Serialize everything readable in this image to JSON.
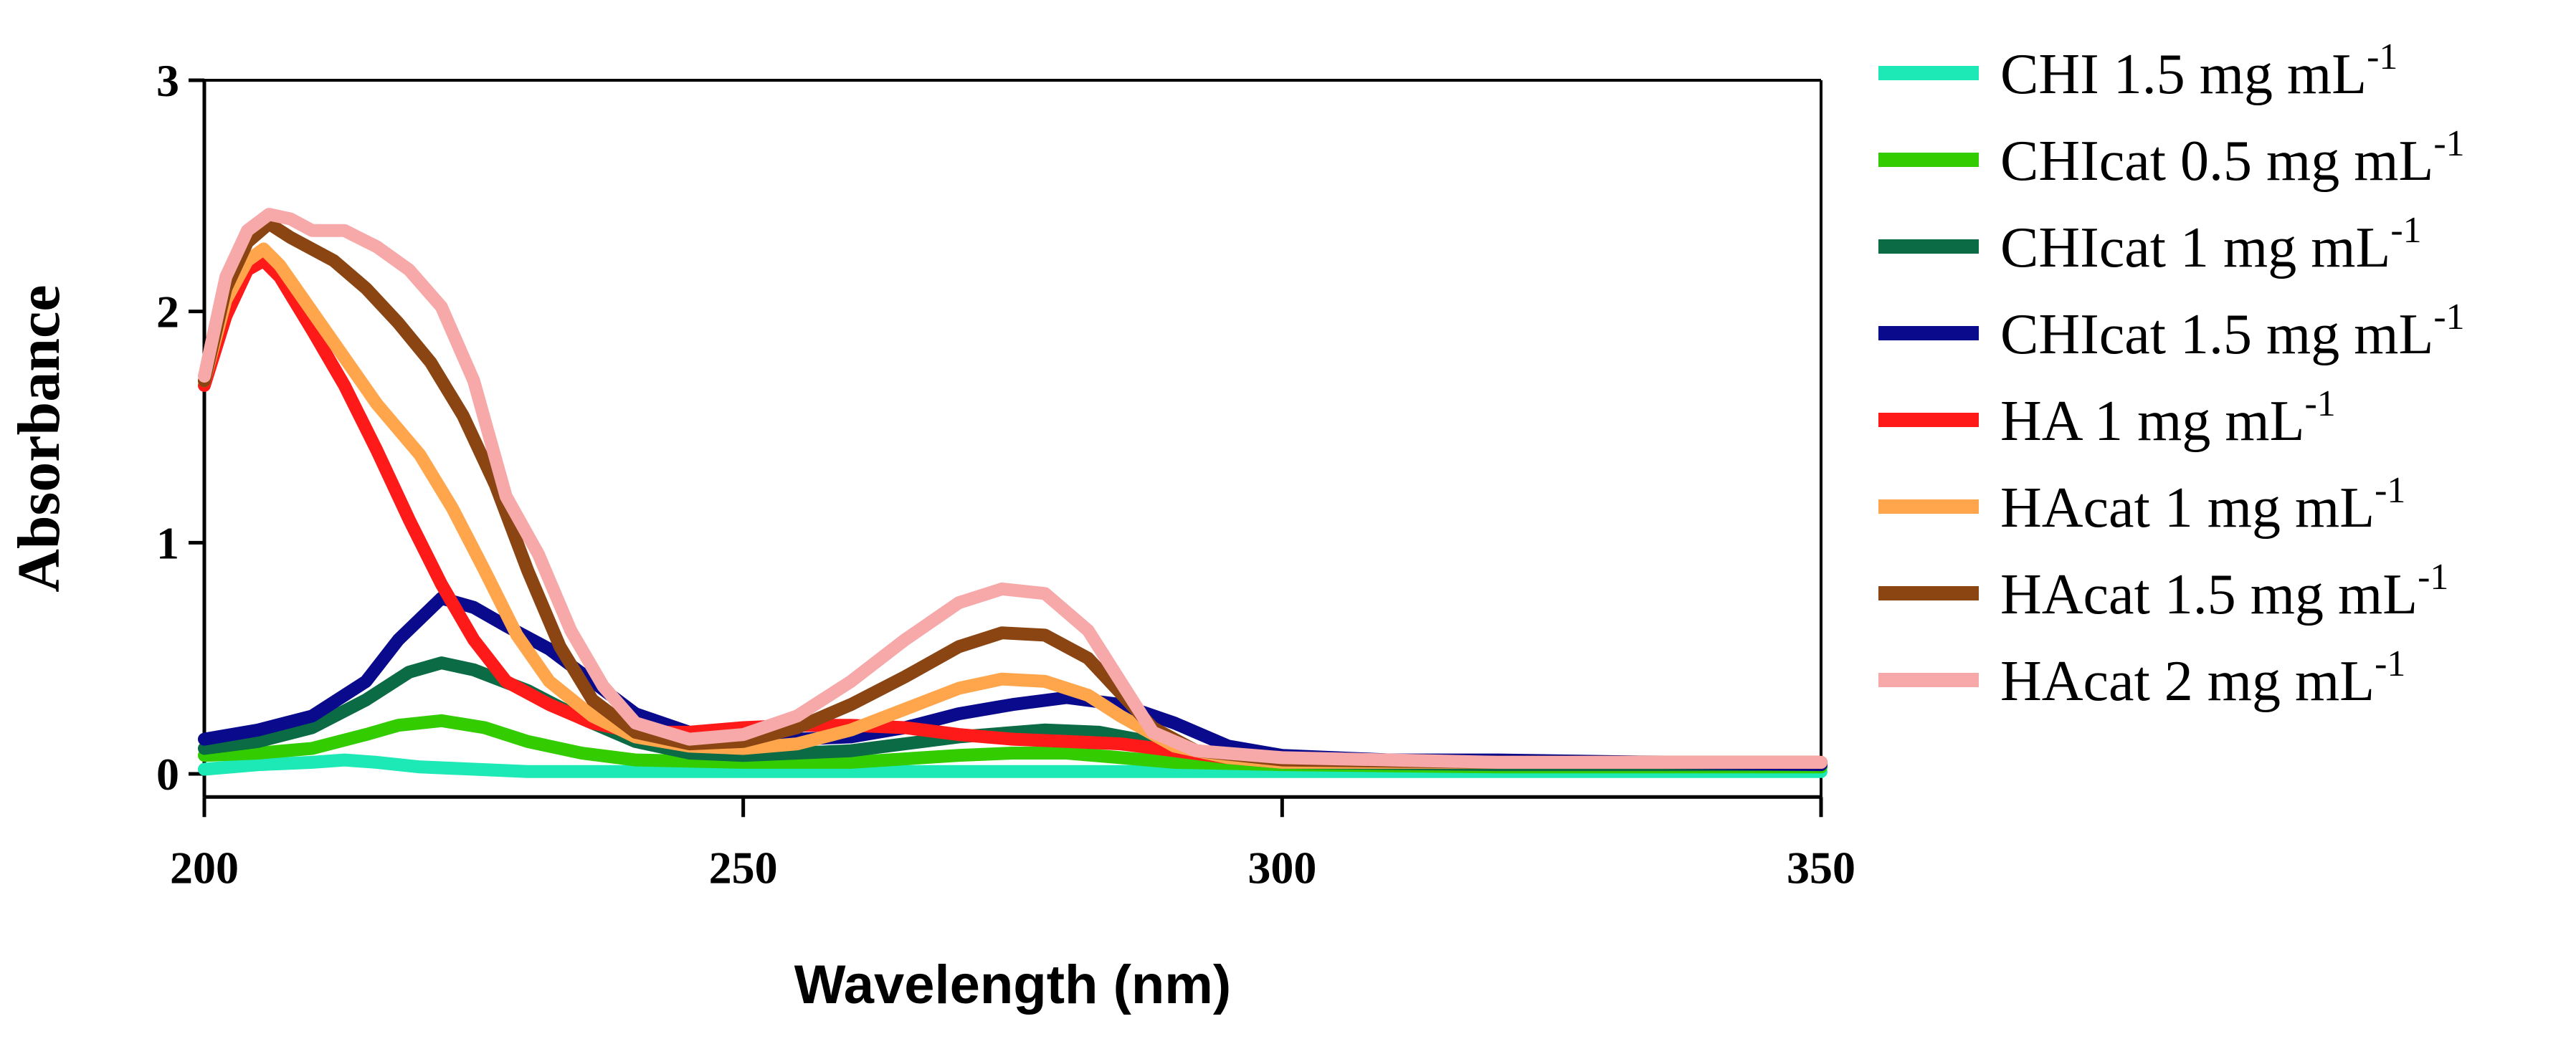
{
  "chart_data": {
    "type": "line",
    "xlabel": "Wavelength (nm)",
    "ylabel": "Absorbance",
    "xlim": [
      200,
      350
    ],
    "ylim": [
      -0.1,
      3
    ],
    "xticks": [
      200,
      250,
      300,
      350
    ],
    "yticks": [
      0,
      1,
      2,
      3
    ],
    "xtick_labels": [
      "200",
      "250",
      "300",
      "350"
    ],
    "ytick_labels": [
      "0",
      "1",
      "2",
      "3"
    ],
    "grid": false,
    "legend_position": "right",
    "series": [
      {
        "name": "CHI 1.5 mg mL",
        "sup": "-1",
        "color": "#1de9b6",
        "points": [
          [
            200,
            0.02
          ],
          [
            205,
            0.04
          ],
          [
            210,
            0.05
          ],
          [
            213,
            0.06
          ],
          [
            216,
            0.05
          ],
          [
            220,
            0.03
          ],
          [
            225,
            0.02
          ],
          [
            230,
            0.01
          ],
          [
            240,
            0.01
          ],
          [
            250,
            0.01
          ],
          [
            260,
            0.01
          ],
          [
            270,
            0.01
          ],
          [
            280,
            0.01
          ],
          [
            290,
            0.01
          ],
          [
            300,
            0.01
          ],
          [
            320,
            0.01
          ],
          [
            350,
            0.01
          ]
        ]
      },
      {
        "name": "CHIcat 0.5 mg mL",
        "sup": "-1",
        "color": "#33cc00",
        "points": [
          [
            200,
            0.08
          ],
          [
            205,
            0.09
          ],
          [
            210,
            0.11
          ],
          [
            215,
            0.17
          ],
          [
            218,
            0.21
          ],
          [
            222,
            0.23
          ],
          [
            226,
            0.2
          ],
          [
            230,
            0.14
          ],
          [
            235,
            0.09
          ],
          [
            240,
            0.06
          ],
          [
            250,
            0.05
          ],
          [
            260,
            0.05
          ],
          [
            270,
            0.08
          ],
          [
            275,
            0.09
          ],
          [
            280,
            0.09
          ],
          [
            285,
            0.07
          ],
          [
            290,
            0.05
          ],
          [
            300,
            0.04
          ],
          [
            320,
            0.03
          ],
          [
            350,
            0.03
          ]
        ]
      },
      {
        "name": "CHIcat 1 mg mL",
        "sup": "-1",
        "color": "#0b6b45",
        "points": [
          [
            200,
            0.11
          ],
          [
            205,
            0.14
          ],
          [
            210,
            0.2
          ],
          [
            215,
            0.32
          ],
          [
            219,
            0.44
          ],
          [
            222,
            0.48
          ],
          [
            225,
            0.45
          ],
          [
            230,
            0.36
          ],
          [
            235,
            0.24
          ],
          [
            240,
            0.14
          ],
          [
            245,
            0.09
          ],
          [
            250,
            0.08
          ],
          [
            260,
            0.1
          ],
          [
            270,
            0.16
          ],
          [
            278,
            0.19
          ],
          [
            283,
            0.18
          ],
          [
            290,
            0.12
          ],
          [
            295,
            0.07
          ],
          [
            300,
            0.05
          ],
          [
            320,
            0.04
          ],
          [
            350,
            0.04
          ]
        ]
      },
      {
        "name": "CHIcat  1.5 mg mL",
        "sup": "-1",
        "color": "#0a0a8c",
        "points": [
          [
            200,
            0.15
          ],
          [
            205,
            0.19
          ],
          [
            210,
            0.25
          ],
          [
            215,
            0.4
          ],
          [
            218,
            0.58
          ],
          [
            222,
            0.76
          ],
          [
            225,
            0.72
          ],
          [
            228,
            0.64
          ],
          [
            232,
            0.54
          ],
          [
            236,
            0.4
          ],
          [
            240,
            0.26
          ],
          [
            245,
            0.18
          ],
          [
            250,
            0.15
          ],
          [
            255,
            0.15
          ],
          [
            260,
            0.16
          ],
          [
            265,
            0.2
          ],
          [
            270,
            0.26
          ],
          [
            275,
            0.3
          ],
          [
            280,
            0.33
          ],
          [
            285,
            0.3
          ],
          [
            290,
            0.22
          ],
          [
            295,
            0.12
          ],
          [
            300,
            0.08
          ],
          [
            310,
            0.06
          ],
          [
            320,
            0.06
          ],
          [
            350,
            0.04
          ]
        ]
      },
      {
        "name": "HA 1 mg mL",
        "sup": "-1",
        "color": "#ff1a1a",
        "points": [
          [
            200,
            1.68
          ],
          [
            202,
            1.98
          ],
          [
            204,
            2.18
          ],
          [
            205.5,
            2.22
          ],
          [
            207,
            2.15
          ],
          [
            210,
            1.92
          ],
          [
            213,
            1.68
          ],
          [
            216,
            1.4
          ],
          [
            219,
            1.1
          ],
          [
            222,
            0.82
          ],
          [
            225,
            0.58
          ],
          [
            228,
            0.4
          ],
          [
            232,
            0.3
          ],
          [
            236,
            0.22
          ],
          [
            240,
            0.18
          ],
          [
            245,
            0.18
          ],
          [
            250,
            0.2
          ],
          [
            255,
            0.21
          ],
          [
            260,
            0.21
          ],
          [
            265,
            0.2
          ],
          [
            270,
            0.17
          ],
          [
            275,
            0.15
          ],
          [
            280,
            0.14
          ],
          [
            285,
            0.13
          ],
          [
            290,
            0.1
          ],
          [
            295,
            0.07
          ],
          [
            300,
            0.06
          ],
          [
            320,
            0.05
          ],
          [
            350,
            0.05
          ]
        ]
      },
      {
        "name": "HAcat 1 mg mL",
        "sup": "-1",
        "color": "#ffa64d",
        "points": [
          [
            200,
            1.7
          ],
          [
            202,
            2.05
          ],
          [
            204,
            2.22
          ],
          [
            205.5,
            2.27
          ],
          [
            207,
            2.2
          ],
          [
            210,
            2.0
          ],
          [
            213,
            1.8
          ],
          [
            216,
            1.6
          ],
          [
            220,
            1.38
          ],
          [
            223,
            1.15
          ],
          [
            226,
            0.88
          ],
          [
            229,
            0.6
          ],
          [
            232,
            0.4
          ],
          [
            236,
            0.25
          ],
          [
            240,
            0.16
          ],
          [
            245,
            0.12
          ],
          [
            250,
            0.11
          ],
          [
            255,
            0.13
          ],
          [
            260,
            0.19
          ],
          [
            265,
            0.28
          ],
          [
            270,
            0.37
          ],
          [
            274,
            0.41
          ],
          [
            278,
            0.4
          ],
          [
            282,
            0.34
          ],
          [
            285,
            0.25
          ],
          [
            290,
            0.12
          ],
          [
            295,
            0.07
          ],
          [
            300,
            0.05
          ],
          [
            320,
            0.05
          ],
          [
            350,
            0.05
          ]
        ]
      },
      {
        "name": "HAcat 1.5 mg mL",
        "sup": "-1",
        "color": "#8b4513",
        "points": [
          [
            200,
            1.7
          ],
          [
            202,
            2.1
          ],
          [
            204,
            2.3
          ],
          [
            206,
            2.38
          ],
          [
            208,
            2.32
          ],
          [
            212,
            2.22
          ],
          [
            215,
            2.1
          ],
          [
            218,
            1.95
          ],
          [
            221,
            1.78
          ],
          [
            224,
            1.55
          ],
          [
            227,
            1.25
          ],
          [
            230,
            0.88
          ],
          [
            233,
            0.55
          ],
          [
            236,
            0.32
          ],
          [
            240,
            0.18
          ],
          [
            245,
            0.13
          ],
          [
            250,
            0.14
          ],
          [
            255,
            0.2
          ],
          [
            260,
            0.3
          ],
          [
            265,
            0.42
          ],
          [
            270,
            0.55
          ],
          [
            274,
            0.61
          ],
          [
            278,
            0.6
          ],
          [
            282,
            0.5
          ],
          [
            285,
            0.35
          ],
          [
            288,
            0.2
          ],
          [
            292,
            0.1
          ],
          [
            300,
            0.06
          ],
          [
            320,
            0.05
          ],
          [
            350,
            0.05
          ]
        ]
      },
      {
        "name": "HAcat 2 mg mL",
        "sup": "-1",
        "color": "#f7a8a8",
        "points": [
          [
            200,
            1.72
          ],
          [
            202,
            2.15
          ],
          [
            204,
            2.35
          ],
          [
            206,
            2.42
          ],
          [
            208,
            2.4
          ],
          [
            210,
            2.35
          ],
          [
            213,
            2.35
          ],
          [
            216,
            2.28
          ],
          [
            219,
            2.18
          ],
          [
            222,
            2.02
          ],
          [
            225,
            1.7
          ],
          [
            228,
            1.2
          ],
          [
            231,
            0.95
          ],
          [
            234,
            0.62
          ],
          [
            237,
            0.38
          ],
          [
            240,
            0.22
          ],
          [
            245,
            0.15
          ],
          [
            250,
            0.17
          ],
          [
            255,
            0.25
          ],
          [
            260,
            0.4
          ],
          [
            265,
            0.58
          ],
          [
            270,
            0.74
          ],
          [
            274,
            0.8
          ],
          [
            278,
            0.78
          ],
          [
            282,
            0.62
          ],
          [
            285,
            0.4
          ],
          [
            288,
            0.18
          ],
          [
            292,
            0.1
          ],
          [
            300,
            0.07
          ],
          [
            320,
            0.05
          ],
          [
            350,
            0.05
          ]
        ]
      }
    ]
  }
}
